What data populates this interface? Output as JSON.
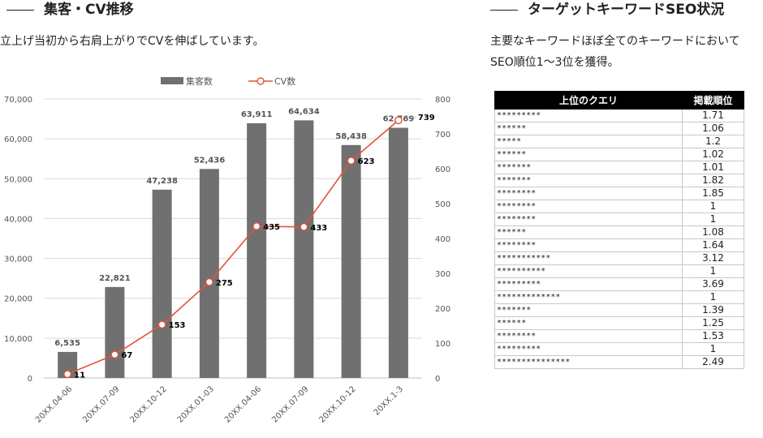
{
  "left_section": {
    "title": "集客・CV推移",
    "subtitle": "立上げ当初から右肩上がりでCVを伸ばしています。"
  },
  "right_section": {
    "title": "ターゲットキーワードSEO状況",
    "subtitle": "主要なキーワードほぼ全てのキーワードにおいてSEO順位1〜3位を獲得。"
  },
  "chart_data": {
    "type": "bar",
    "categories": [
      "20XX.04-06",
      "20XX.07-09",
      "20XX.10-12",
      "20XX.01-03",
      "20XX.04-06",
      "20XX.07-09",
      "20XX.10-12",
      "20XX.1-3"
    ],
    "series": [
      {
        "name": "集客数",
        "type": "bar",
        "axis": "left",
        "color": "#707070",
        "values": [
          6535,
          22821,
          47238,
          52436,
          63911,
          64634,
          58438,
          62769
        ],
        "labels": [
          "6,535",
          "22,821",
          "47,238",
          "52,436",
          "63,911",
          "64,634",
          "58,438",
          "62,769"
        ]
      },
      {
        "name": "CV数",
        "type": "line",
        "axis": "right",
        "color": "#E0543A",
        "values": [
          11,
          67,
          153,
          275,
          435,
          433,
          623,
          739
        ],
        "labels": [
          "11",
          "67",
          "153",
          "275",
          "435",
          "433",
          "623",
          "739"
        ]
      }
    ],
    "ylim_left": [
      0,
      70000
    ],
    "yticks_left": [
      "0",
      "10,000",
      "20,000",
      "30,000",
      "40,000",
      "50,000",
      "60,000",
      "70,000"
    ],
    "ylim_right": [
      0,
      800
    ],
    "yticks_right": [
      "0",
      "100",
      "200",
      "300",
      "400",
      "500",
      "600",
      "700",
      "800"
    ],
    "legend": "top-center",
    "grid": true
  },
  "table": {
    "headers": [
      "上位のクエリ",
      "掲載順位"
    ],
    "rows": [
      [
        "*********",
        "1.71"
      ],
      [
        "******",
        "1.06"
      ],
      [
        "*****",
        "1.2"
      ],
      [
        "******",
        "1.02"
      ],
      [
        "*******",
        "1.01"
      ],
      [
        "*******",
        "1.82"
      ],
      [
        "********",
        "1.85"
      ],
      [
        "********",
        "1"
      ],
      [
        "********",
        "1"
      ],
      [
        "******",
        "1.08"
      ],
      [
        "********",
        "1.64"
      ],
      [
        "***********",
        "3.12"
      ],
      [
        "**********",
        "1"
      ],
      [
        "*********",
        "3.69"
      ],
      [
        "*************",
        "1"
      ],
      [
        "*******",
        "1.39"
      ],
      [
        "******",
        "1.25"
      ],
      [
        "********",
        "1.53"
      ],
      [
        "*********",
        "1"
      ],
      [
        "***************",
        "2.49"
      ]
    ]
  }
}
